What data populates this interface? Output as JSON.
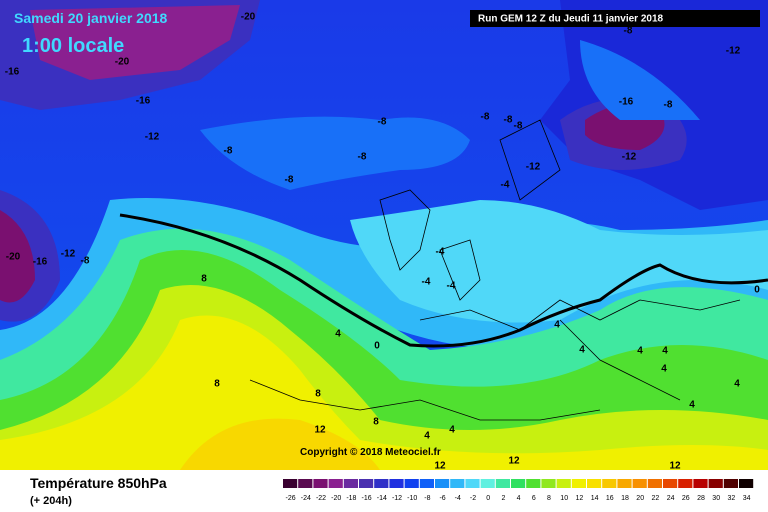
{
  "header": {
    "date": "Samedi 20 janvier 2018",
    "time": "1:00 locale",
    "run": "Run GEM 12 Z du Jeudi 11 janvier 2018"
  },
  "footer": {
    "title": "Température 850hPa",
    "lead": "(+ 204h)",
    "copyright": "Copyright © 2018 Meteociel.fr"
  },
  "contour_labels": [
    -20,
    -20,
    -16,
    -16,
    -12,
    -8,
    -8,
    -8,
    -8,
    -8,
    -8,
    -8,
    -12,
    -4,
    -16,
    -8,
    -12,
    -12,
    -8,
    -20,
    -16,
    -12,
    -8,
    -4,
    -4,
    -4,
    8,
    4,
    0,
    8,
    8,
    12,
    8,
    4,
    4,
    12,
    12,
    12,
    4,
    4,
    4,
    4,
    4,
    4,
    0,
    4
  ],
  "colorbar": {
    "ticks": [
      -26,
      -24,
      -22,
      -20,
      -18,
      -16,
      -14,
      -12,
      -10,
      -8,
      -6,
      -4,
      -2,
      0,
      2,
      4,
      6,
      8,
      10,
      12,
      14,
      16,
      18,
      20,
      22,
      24,
      26,
      28,
      30,
      32,
      34
    ],
    "colors": [
      "#3a0030",
      "#5a0a50",
      "#7a1070",
      "#8a2090",
      "#6a2aa0",
      "#4a30b0",
      "#3030c8",
      "#2030e0",
      "#1040f0",
      "#1060f8",
      "#1890f8",
      "#30b8f8",
      "#50d8f8",
      "#60f0e0",
      "#40e8a0",
      "#30e060",
      "#50e030",
      "#90e820",
      "#c8f010",
      "#f0f000",
      "#f8e000",
      "#f8c800",
      "#f8a800",
      "#f89000",
      "#f07000",
      "#e84800",
      "#d82000",
      "#b80000",
      "#880000",
      "#500000",
      "#100000"
    ]
  }
}
